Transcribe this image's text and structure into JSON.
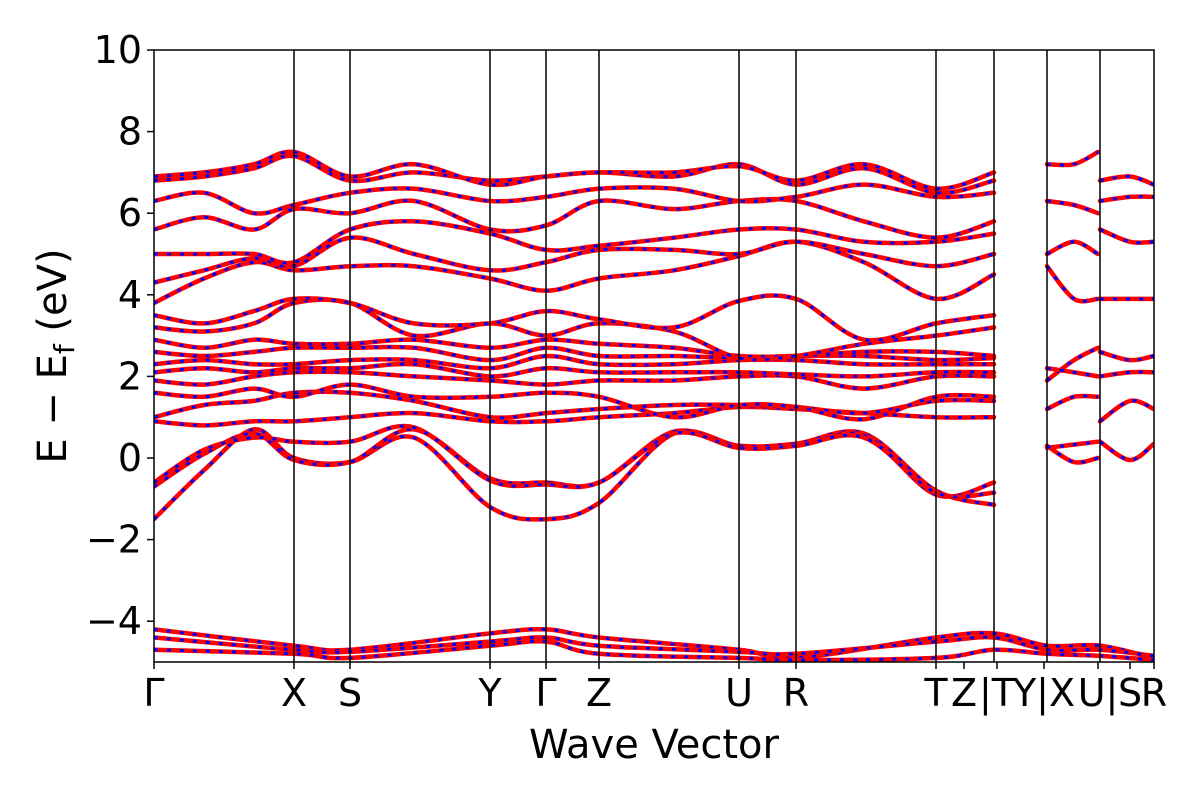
{
  "chart_data": {
    "type": "line",
    "title": "",
    "xlabel": "Wave Vector",
    "ylabel": "E − E",
    "ylabel_sub": "f",
    "ylabel_unit": " (eV)",
    "ylim": [
      -5,
      10
    ],
    "yticks": [
      -4,
      -2,
      0,
      2,
      4,
      6,
      8,
      10
    ],
    "xlim": [
      0,
      10
    ],
    "grid": false,
    "legend": "none",
    "colors": {
      "solid": "#ff0000",
      "dashed": "#0000ff",
      "divider": "#000000"
    },
    "kpoints": [
      {
        "label": "Γ",
        "x": 0
      },
      {
        "label": "X",
        "x": 1.4
      },
      {
        "label": "S",
        "x": 1.96
      },
      {
        "label": "Y",
        "x": 3.36
      },
      {
        "label": "Γ",
        "x": 3.92
      },
      {
        "label": "Z",
        "x": 4.45
      },
      {
        "label": "U",
        "x": 5.85
      },
      {
        "label": "R",
        "x": 6.42
      },
      {
        "label": "T",
        "x": 7.82
      },
      {
        "label": "Z",
        "x": 8.1
      },
      {
        "label": "|T",
        "x": 8.43
      },
      {
        "label": "Y|X",
        "x": 8.9
      },
      {
        "label": "U|",
        "x": 9.44
      },
      {
        "label": "S",
        "x": 9.76
      },
      {
        "label": "R",
        "x": 10.0
      }
    ],
    "dividers": [
      1.4,
      1.96,
      3.36,
      3.92,
      4.45,
      5.85,
      6.42,
      7.82,
      8.4,
      8.93,
      9.46
    ],
    "series": [
      {
        "x": [
          0,
          0.5,
          1.0,
          1.4,
          1.96,
          2.6,
          3.36,
          3.92,
          4.45,
          5.2,
          5.85,
          6.42,
          7.1,
          7.82,
          8.4
        ],
        "y": [
          -1.5,
          -0.3,
          0.7,
          0.0,
          -0.1,
          0.5,
          -1.2,
          -1.5,
          -1.1,
          0.6,
          0.3,
          0.35,
          0.6,
          -0.8,
          -1.15
        ]
      },
      {
        "x": [
          0,
          0.5,
          1.0,
          1.4,
          1.96,
          2.6,
          3.36,
          3.92,
          4.45,
          5.2,
          5.85,
          6.42,
          7.1,
          7.82,
          8.4
        ],
        "y": [
          -0.7,
          0.1,
          0.6,
          -0.05,
          -0.1,
          0.7,
          -0.5,
          -0.6,
          -0.6,
          0.65,
          0.25,
          0.3,
          0.55,
          -0.9,
          -0.6
        ]
      },
      {
        "x": [
          0,
          0.5,
          1.0,
          1.4,
          1.96,
          2.6,
          3.36,
          3.92,
          4.45,
          5.2,
          5.85,
          6.42,
          7.1,
          7.82,
          8.4
        ],
        "y": [
          -0.6,
          0.2,
          0.5,
          0.4,
          0.4,
          0.75,
          -0.55,
          -0.65,
          -0.6,
          0.6,
          0.25,
          0.3,
          0.5,
          -0.85,
          -0.85
        ]
      },
      {
        "x": [
          0,
          0.5,
          1.0,
          1.4,
          1.96,
          2.6,
          3.36,
          3.92,
          4.45,
          5.2,
          5.85,
          6.42,
          7.1,
          7.82,
          8.4
        ],
        "y": [
          0.9,
          0.8,
          0.9,
          0.9,
          1.0,
          1.1,
          0.9,
          0.9,
          1.0,
          1.1,
          1.25,
          1.2,
          1.1,
          1.0,
          1.0
        ]
      },
      {
        "x": [
          0,
          0.5,
          1.0,
          1.4,
          1.96,
          2.6,
          3.36,
          3.92,
          4.45,
          5.2,
          5.85,
          6.42,
          7.1,
          7.82,
          8.4
        ],
        "y": [
          1.0,
          1.3,
          1.4,
          1.6,
          1.6,
          1.4,
          1.0,
          1.1,
          1.2,
          1.3,
          1.3,
          1.25,
          1.1,
          1.4,
          1.4
        ]
      },
      {
        "x": [
          0,
          0.5,
          1.0,
          1.4,
          1.96,
          2.6,
          3.36,
          3.92,
          4.45,
          5.2,
          5.85,
          6.42,
          7.1,
          7.82,
          8.4
        ],
        "y": [
          1.6,
          1.5,
          1.7,
          1.5,
          1.8,
          1.5,
          1.5,
          1.6,
          1.5,
          1.0,
          1.3,
          1.25,
          0.95,
          1.5,
          1.5
        ]
      },
      {
        "x": [
          0,
          0.5,
          1.0,
          1.4,
          1.96,
          2.6,
          3.36,
          3.92,
          4.45,
          5.2,
          5.85,
          6.42,
          7.1,
          7.82,
          8.4
        ],
        "y": [
          1.9,
          1.8,
          2.0,
          2.1,
          2.1,
          2.0,
          1.9,
          1.8,
          1.9,
          1.9,
          2.0,
          2.0,
          1.7,
          2.0,
          2.0
        ]
      },
      {
        "x": [
          0,
          0.5,
          1.0,
          1.4,
          1.96,
          2.6,
          3.36,
          3.92,
          4.45,
          5.2,
          5.85,
          6.42,
          7.1,
          7.82,
          8.4
        ],
        "y": [
          2.1,
          2.2,
          2.1,
          2.2,
          2.2,
          2.3,
          2.0,
          2.2,
          2.1,
          2.1,
          2.1,
          2.05,
          2.0,
          2.1,
          2.1
        ]
      },
      {
        "x": [
          0,
          0.5,
          1.0,
          1.4,
          1.96,
          2.6,
          3.36,
          3.92,
          4.45,
          5.2,
          5.85,
          6.42,
          7.1,
          7.82,
          8.4
        ],
        "y": [
          2.3,
          2.4,
          2.3,
          2.3,
          2.4,
          2.4,
          2.2,
          2.5,
          2.3,
          2.3,
          2.4,
          2.4,
          2.3,
          2.3,
          2.3
        ]
      },
      {
        "x": [
          0,
          0.5,
          1.0,
          1.4,
          1.96,
          2.6,
          3.36,
          3.92,
          4.45,
          5.2,
          5.85,
          6.42,
          7.1,
          7.82,
          8.4
        ],
        "y": [
          2.6,
          2.5,
          2.6,
          2.7,
          2.7,
          2.7,
          2.4,
          2.7,
          2.5,
          2.5,
          2.45,
          2.5,
          2.5,
          2.4,
          2.45
        ]
      },
      {
        "x": [
          0,
          0.5,
          1.0,
          1.4,
          1.96,
          2.6,
          3.36,
          3.92,
          4.45,
          5.2,
          5.85,
          6.42,
          7.1,
          7.82,
          8.4
        ],
        "y": [
          2.9,
          2.7,
          2.9,
          2.8,
          2.8,
          2.9,
          2.7,
          2.9,
          2.8,
          2.7,
          2.5,
          2.5,
          2.6,
          2.6,
          2.5
        ]
      },
      {
        "x": [
          0,
          0.5,
          1.0,
          1.4,
          1.96,
          2.6,
          3.36,
          3.92,
          4.45,
          5.2,
          5.85,
          6.42,
          7.1,
          7.82,
          8.4
        ],
        "y": [
          3.2,
          3.1,
          3.3,
          3.8,
          3.8,
          3.0,
          3.3,
          3.0,
          3.3,
          3.1,
          2.45,
          2.5,
          2.8,
          3.0,
          3.2
        ]
      },
      {
        "x": [
          0,
          0.5,
          1.0,
          1.4,
          1.96,
          2.6,
          3.36,
          3.92,
          4.45,
          5.2,
          5.85,
          6.42,
          7.1,
          7.82,
          8.4
        ],
        "y": [
          3.5,
          3.3,
          3.6,
          3.9,
          3.8,
          3.3,
          3.3,
          3.6,
          3.4,
          3.2,
          3.85,
          3.9,
          2.9,
          3.3,
          3.5
        ]
      },
      {
        "x": [
          0,
          0.5,
          1.0,
          1.4,
          1.96,
          2.6,
          3.36,
          3.92,
          4.45,
          5.2,
          5.85,
          6.42,
          7.1,
          7.82,
          8.4
        ],
        "y": [
          3.8,
          4.4,
          4.8,
          4.6,
          4.7,
          4.7,
          4.4,
          4.1,
          4.4,
          4.6,
          4.95,
          5.3,
          4.8,
          3.9,
          4.5
        ]
      },
      {
        "x": [
          0,
          0.5,
          1.0,
          1.4,
          1.96,
          2.6,
          3.36,
          3.92,
          4.45,
          5.2,
          5.85,
          6.42,
          7.1,
          7.82,
          8.4
        ],
        "y": [
          4.3,
          4.6,
          4.9,
          4.7,
          5.4,
          5.0,
          4.6,
          4.8,
          5.1,
          5.1,
          5.0,
          5.3,
          5.0,
          4.7,
          5.0
        ]
      },
      {
        "x": [
          0,
          0.5,
          1.0,
          1.4,
          1.96,
          2.6,
          3.36,
          3.92,
          4.45,
          5.2,
          5.85,
          6.42,
          7.1,
          7.82,
          8.4
        ],
        "y": [
          5.0,
          5.0,
          5.0,
          4.8,
          5.6,
          5.8,
          5.5,
          5.1,
          5.2,
          5.4,
          5.6,
          5.6,
          5.3,
          5.3,
          5.5
        ]
      },
      {
        "x": [
          0,
          0.5,
          1.0,
          1.4,
          1.96,
          2.6,
          3.36,
          3.92,
          4.45,
          5.2,
          5.85,
          6.42,
          7.1,
          7.82,
          8.4
        ],
        "y": [
          5.6,
          5.9,
          5.6,
          6.1,
          6.0,
          6.3,
          5.6,
          5.7,
          6.3,
          6.1,
          6.3,
          6.3,
          5.8,
          5.4,
          5.8
        ]
      },
      {
        "x": [
          0,
          0.5,
          1.0,
          1.4,
          1.96,
          2.6,
          3.36,
          3.92,
          4.45,
          5.2,
          5.85,
          6.42,
          7.1,
          7.82,
          8.4
        ],
        "y": [
          6.3,
          6.5,
          6.0,
          6.2,
          6.5,
          6.6,
          6.3,
          6.4,
          6.6,
          6.6,
          6.3,
          6.4,
          6.7,
          6.4,
          6.5
        ]
      },
      {
        "x": [
          0,
          0.5,
          1.0,
          1.4,
          1.96,
          2.6,
          3.36,
          3.92,
          4.45,
          5.2,
          5.85,
          6.42,
          7.1,
          7.82,
          8.4
        ],
        "y": [
          6.8,
          6.9,
          7.1,
          7.4,
          6.8,
          7.0,
          6.8,
          6.9,
          7.0,
          6.9,
          7.2,
          6.7,
          7.1,
          6.5,
          6.8
        ]
      },
      {
        "x": [
          0,
          0.5,
          1.0,
          1.4,
          1.96,
          2.6,
          3.36,
          3.92,
          4.45,
          5.2,
          5.85,
          6.42,
          7.1,
          7.82,
          8.4
        ],
        "y": [
          6.9,
          7.0,
          7.2,
          7.5,
          6.9,
          7.2,
          6.7,
          6.9,
          7.0,
          7.0,
          7.15,
          6.8,
          7.2,
          6.6,
          7.0
        ]
      },
      {
        "x": [
          8.93,
          9.44
        ],
        "y": [
          0.25,
          0.4
        ]
      },
      {
        "x": [
          8.93,
          9.2,
          9.44
        ],
        "y": [
          0.3,
          -0.1,
          0.0
        ]
      },
      {
        "x": [
          8.93,
          9.2,
          9.44
        ],
        "y": [
          1.2,
          1.5,
          1.5
        ]
      },
      {
        "x": [
          8.93,
          9.2,
          9.44
        ],
        "y": [
          1.9,
          2.4,
          2.7
        ]
      },
      {
        "x": [
          8.93,
          9.2,
          9.44
        ],
        "y": [
          2.2,
          2.1,
          2.0
        ]
      },
      {
        "x": [
          8.93,
          9.2,
          9.44
        ],
        "y": [
          4.7,
          3.9,
          3.9
        ]
      },
      {
        "x": [
          8.93,
          9.2,
          9.44
        ],
        "y": [
          5.0,
          5.3,
          5.0
        ]
      },
      {
        "x": [
          8.93,
          9.2,
          9.44
        ],
        "y": [
          6.3,
          6.2,
          6.0
        ]
      },
      {
        "x": [
          8.93,
          9.2,
          9.44
        ],
        "y": [
          7.2,
          7.2,
          7.5
        ]
      },
      {
        "x": [
          9.46,
          9.76,
          10.0
        ],
        "y": [
          0.4,
          -0.05,
          0.35
        ]
      },
      {
        "x": [
          9.46,
          9.76,
          10.0
        ],
        "y": [
          0.9,
          1.4,
          1.2
        ]
      },
      {
        "x": [
          9.46,
          9.76,
          10.0
        ],
        "y": [
          2.0,
          2.1,
          2.1
        ]
      },
      {
        "x": [
          9.46,
          9.76,
          10.0
        ],
        "y": [
          2.6,
          2.4,
          2.5
        ]
      },
      {
        "x": [
          9.46,
          9.76,
          10.0
        ],
        "y": [
          3.9,
          3.9,
          3.9
        ]
      },
      {
        "x": [
          9.46,
          9.76,
          10.0
        ],
        "y": [
          5.6,
          5.3,
          5.3
        ]
      },
      {
        "x": [
          9.46,
          9.76,
          10.0
        ],
        "y": [
          6.3,
          6.4,
          6.4
        ]
      },
      {
        "x": [
          9.46,
          9.76,
          10.0
        ],
        "y": [
          6.8,
          6.9,
          6.7
        ]
      },
      {
        "x": [
          0,
          1.4,
          1.96,
          3.36,
          3.92,
          4.45,
          5.85,
          6.42,
          7.82,
          8.4,
          8.93,
          9.46,
          10.0
        ],
        "y": [
          -4.2,
          -4.6,
          -4.7,
          -4.3,
          -4.2,
          -4.4,
          -4.7,
          -4.9,
          -4.4,
          -4.3,
          -4.6,
          -4.6,
          -4.9
        ]
      },
      {
        "x": [
          0,
          1.4,
          1.96,
          3.36,
          3.92,
          4.45,
          5.85,
          6.42,
          7.82,
          8.4,
          8.93,
          9.46,
          10.0
        ],
        "y": [
          -4.4,
          -4.7,
          -4.75,
          -4.5,
          -4.4,
          -4.6,
          -4.75,
          -4.8,
          -4.5,
          -4.4,
          -4.7,
          -4.7,
          -4.85
        ]
      },
      {
        "x": [
          0,
          1.4,
          1.96,
          3.36,
          3.92,
          4.45,
          5.85,
          6.42,
          7.82,
          8.4,
          8.93,
          9.46,
          10.0
        ],
        "y": [
          -4.7,
          -4.8,
          -4.9,
          -4.6,
          -4.5,
          -4.8,
          -4.9,
          -4.95,
          -4.9,
          -4.7,
          -4.8,
          -4.85,
          -4.95
        ]
      }
    ]
  }
}
